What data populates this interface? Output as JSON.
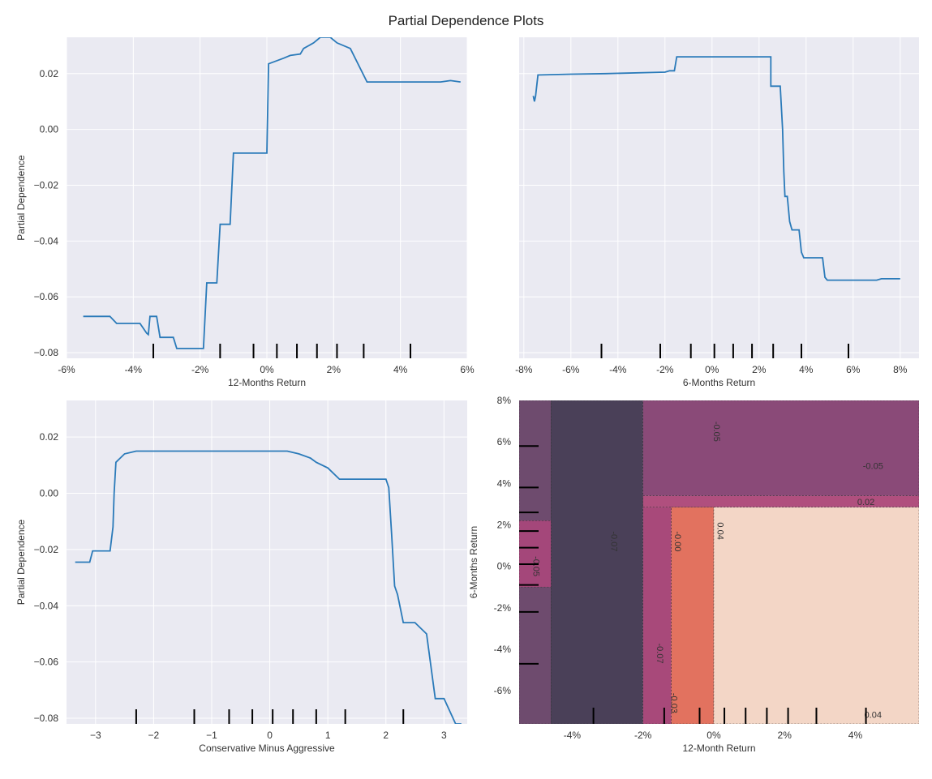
{
  "figure": {
    "title": "Partial Dependence Plots"
  },
  "colors": {
    "panel_bg": "#eaeaf2",
    "grid": "#ffffff",
    "line": "#2a7ab9",
    "rug": "#000000"
  },
  "chart_data": [
    {
      "type": "line",
      "id": "pd1",
      "xlabel": "12-Months Return",
      "ylabel": "Partial Dependence",
      "xlim": [
        -0.06,
        0.06
      ],
      "ylim": [
        -0.082,
        0.033
      ],
      "x_ticks": [
        -0.06,
        -0.04,
        -0.02,
        0,
        0.02,
        0.04,
        0.06
      ],
      "x_tick_labels": [
        "-6%",
        "-4%",
        "-2%",
        "0%",
        "2%",
        "4%",
        "6%"
      ],
      "y_ticks": [
        0.02,
        0.0,
        -0.02,
        -0.04,
        -0.06,
        -0.08
      ],
      "y_tick_labels": [
        "0.02",
        "0.00",
        "−0.02",
        "−0.04",
        "−0.06",
        "−0.08"
      ],
      "rug_deciles": [
        -0.034,
        -0.014,
        -0.004,
        0.003,
        0.009,
        0.015,
        0.021,
        0.029,
        0.043
      ],
      "x": [
        -0.055,
        -0.047,
        -0.045,
        -0.038,
        -0.036,
        -0.0355,
        -0.035,
        -0.033,
        -0.032,
        -0.028,
        -0.027,
        -0.019,
        -0.018,
        -0.015,
        -0.014,
        -0.011,
        -0.01,
        0.0,
        0.0005,
        0.005,
        0.007,
        0.01,
        0.011,
        0.014,
        0.016,
        0.019,
        0.021,
        0.025,
        0.03,
        0.044,
        0.052,
        0.055,
        0.058
      ],
      "y": [
        -0.067,
        -0.067,
        -0.0695,
        -0.0695,
        -0.073,
        -0.0735,
        -0.067,
        -0.067,
        -0.0745,
        -0.0745,
        -0.0785,
        -0.0785,
        -0.055,
        -0.055,
        -0.034,
        -0.034,
        -0.0085,
        -0.0085,
        0.0235,
        0.0255,
        0.0265,
        0.027,
        0.029,
        0.031,
        0.033,
        0.033,
        0.031,
        0.029,
        0.017,
        0.017,
        0.017,
        0.0175,
        0.017
      ]
    },
    {
      "type": "line",
      "id": "pd2",
      "xlabel": "6-Months Return",
      "ylabel": "",
      "xlim": [
        -0.082,
        0.088
      ],
      "ylim": [
        -0.082,
        0.033
      ],
      "x_ticks": [
        -0.08,
        -0.06,
        -0.04,
        -0.02,
        0,
        0.02,
        0.04,
        0.06,
        0.08
      ],
      "x_tick_labels": [
        "-8%",
        "-6%",
        "-4%",
        "-2%",
        "0%",
        "2%",
        "4%",
        "6%",
        "8%"
      ],
      "y_ticks": [
        0.02,
        0.0,
        -0.02,
        -0.04,
        -0.06,
        -0.08
      ],
      "y_tick_labels": [],
      "rug_deciles": [
        -0.047,
        -0.022,
        -0.009,
        0.001,
        0.009,
        0.017,
        0.026,
        0.038,
        0.058
      ],
      "x": [
        -0.076,
        -0.0755,
        -0.075,
        -0.074,
        -0.06,
        -0.045,
        -0.02,
        -0.018,
        -0.016,
        -0.015,
        0.025,
        0.025,
        0.0255,
        0.029,
        0.03,
        0.0305,
        0.031,
        0.032,
        0.033,
        0.034,
        0.037,
        0.038,
        0.039,
        0.047,
        0.048,
        0.049,
        0.05,
        0.07,
        0.072,
        0.08
      ],
      "y": [
        0.012,
        0.01,
        0.012,
        0.0195,
        0.0198,
        0.02,
        0.0205,
        0.021,
        0.021,
        0.026,
        0.026,
        0.0155,
        0.0155,
        0.0155,
        0.0,
        -0.015,
        -0.024,
        -0.024,
        -0.033,
        -0.036,
        -0.036,
        -0.044,
        -0.046,
        -0.046,
        -0.053,
        -0.054,
        -0.054,
        -0.054,
        -0.0535,
        -0.0535
      ]
    },
    {
      "type": "line",
      "id": "pd3",
      "xlabel": "Conservative Minus Aggressive",
      "ylabel": "Partial Dependence",
      "xlim": [
        -3.5,
        3.4
      ],
      "ylim": [
        -0.082,
        0.033
      ],
      "x_ticks": [
        -3,
        -2,
        -1,
        0,
        1,
        2,
        3
      ],
      "x_tick_labels": [
        "−3",
        "−2",
        "−1",
        "0",
        "1",
        "2",
        "3"
      ],
      "y_ticks": [
        0.02,
        0.0,
        -0.02,
        -0.04,
        -0.06,
        -0.08
      ],
      "y_tick_labels": [
        "0.02",
        "0.00",
        "−0.02",
        "−0.04",
        "−0.06",
        "−0.08"
      ],
      "rug_deciles": [
        -2.3,
        -1.3,
        -0.7,
        -0.3,
        0.05,
        0.4,
        0.8,
        1.3,
        2.3
      ],
      "x": [
        -3.35,
        -3.1,
        -3.05,
        -2.75,
        -2.7,
        -2.68,
        -2.65,
        -2.6,
        -2.5,
        -2.3,
        -2.1,
        -1.8,
        -0.5,
        0.3,
        0.5,
        0.7,
        0.8,
        1.0,
        1.2,
        1.8,
        2.0,
        2.05,
        2.1,
        2.15,
        2.2,
        2.3,
        2.5,
        2.7,
        2.85,
        3.0,
        3.2,
        3.3
      ],
      "y": [
        -0.0245,
        -0.0245,
        -0.0205,
        -0.0205,
        -0.012,
        0.0,
        0.011,
        0.012,
        0.014,
        0.015,
        0.015,
        0.015,
        0.015,
        0.015,
        0.014,
        0.0125,
        0.011,
        0.009,
        0.005,
        0.005,
        0.005,
        0.002,
        -0.015,
        -0.033,
        -0.036,
        -0.046,
        -0.046,
        -0.05,
        -0.073,
        -0.073,
        -0.082,
        -0.082
      ]
    },
    {
      "type": "heatmap",
      "id": "pd4",
      "xlabel": "12-Month Return",
      "ylabel": "6-Months Return",
      "xlim": [
        -0.055,
        0.058
      ],
      "ylim": [
        -0.076,
        0.08
      ],
      "x_ticks": [
        -0.04,
        -0.02,
        0,
        0.02,
        0.04
      ],
      "x_tick_labels": [
        "-4%",
        "-2%",
        "0%",
        "2%",
        "4%"
      ],
      "y_ticks": [
        0.08,
        0.06,
        0.04,
        0.02,
        0,
        -0.02,
        -0.04,
        -0.06
      ],
      "y_tick_labels": [
        "8%",
        "6%",
        "4%",
        "2%",
        "0%",
        "-2%",
        "-4%",
        "-6%"
      ],
      "rug_x": [
        -0.034,
        -0.014,
        -0.004,
        0.003,
        0.009,
        0.015,
        0.021,
        0.029,
        0.043
      ],
      "rug_y": [
        -0.047,
        -0.022,
        -0.009,
        0.001,
        0.009,
        0.017,
        0.026,
        0.038,
        0.058
      ],
      "regions": [
        {
          "x0": -0.055,
          "x1": -0.046,
          "y0": -0.076,
          "y1": 0.08,
          "fill": "#6e4b6e"
        },
        {
          "x0": -0.046,
          "x1": -0.02,
          "y0": -0.076,
          "y1": 0.08,
          "fill": "#4a4058"
        },
        {
          "x0": -0.02,
          "x1": 0.058,
          "y0": 0.034,
          "y1": 0.08,
          "fill": "#8a4a78"
        },
        {
          "x0": -0.02,
          "x1": 0.058,
          "y0": 0.0285,
          "y1": 0.034,
          "fill": "#b04f7e"
        },
        {
          "x0": -0.02,
          "x1": -0.012,
          "y0": -0.076,
          "y1": 0.0285,
          "fill": "#a8497a"
        },
        {
          "x0": -0.012,
          "x1": 0.0,
          "y0": -0.076,
          "y1": 0.0285,
          "fill": "#e2725f"
        },
        {
          "x0": 0.0,
          "x1": 0.058,
          "y0": -0.076,
          "y1": 0.0285,
          "fill": "#f3d6c6"
        },
        {
          "x0": -0.055,
          "x1": -0.046,
          "y0": -0.01,
          "y1": 0.022,
          "fill": "#a4477a"
        }
      ],
      "contour_labels": [
        {
          "text": "-0.05",
          "x": 0.0,
          "y": 0.065,
          "rotate": 90
        },
        {
          "text": "-0.05",
          "x": 0.045,
          "y": 0.047,
          "rotate": 0
        },
        {
          "text": "0.02",
          "x": 0.043,
          "y": 0.0295,
          "rotate": 0
        },
        {
          "text": "-0.05",
          "x": -0.051,
          "y": 0.0,
          "rotate": 90
        },
        {
          "text": "-0.07",
          "x": -0.029,
          "y": 0.012,
          "rotate": 90
        },
        {
          "text": "-0.00",
          "x": -0.011,
          "y": 0.012,
          "rotate": 90
        },
        {
          "text": "0.04",
          "x": 0.001,
          "y": 0.017,
          "rotate": 90
        },
        {
          "text": "-0.07",
          "x": -0.016,
          "y": -0.042,
          "rotate": 90
        },
        {
          "text": "-0.03",
          "x": -0.012,
          "y": -0.066,
          "rotate": 90
        },
        {
          "text": "0.04",
          "x": 0.045,
          "y": -0.073,
          "rotate": 0
        }
      ]
    }
  ]
}
